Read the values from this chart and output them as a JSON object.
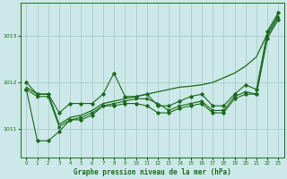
{
  "title": "Graphe pression niveau de la mer (hPa)",
  "xlim": [
    -0.5,
    23.5
  ],
  "ylim": [
    1010.4,
    1013.7
  ],
  "yticks": [
    1011,
    1012,
    1013
  ],
  "xticks": [
    0,
    1,
    2,
    3,
    4,
    5,
    6,
    7,
    8,
    9,
    10,
    11,
    12,
    13,
    14,
    15,
    16,
    17,
    18,
    19,
    20,
    21,
    22,
    23
  ],
  "bg_color": "#cce8e8",
  "grid_color": "#aacccc",
  "line_color": "#1a6b1a",
  "figsize": [
    3.2,
    2.0
  ],
  "dpi": 100,
  "line1": [
    1011.9,
    1011.75,
    1011.75,
    1011.1,
    1011.25,
    1011.3,
    1011.4,
    1011.55,
    1011.6,
    1011.65,
    1011.7,
    1011.75,
    1011.8,
    1011.85,
    1011.9,
    1011.92,
    1011.95,
    1012.0,
    1012.1,
    1012.2,
    1012.35,
    1012.55,
    1013.05,
    1013.45
  ],
  "line2": [
    1012.0,
    1011.75,
    1011.75,
    1011.35,
    1011.55,
    1011.55,
    1011.55,
    1011.75,
    1012.2,
    1011.7,
    1011.7,
    1011.75,
    1011.5,
    1011.5,
    1011.6,
    1011.7,
    1011.75,
    1011.5,
    1011.5,
    1011.75,
    1011.95,
    1011.85,
    1013.1,
    1013.5
  ],
  "line3": [
    1011.85,
    1010.75,
    1010.75,
    1010.95,
    1011.2,
    1011.2,
    1011.3,
    1011.5,
    1011.5,
    1011.55,
    1011.55,
    1011.5,
    1011.35,
    1011.35,
    1011.45,
    1011.5,
    1011.55,
    1011.35,
    1011.35,
    1011.65,
    1011.75,
    1011.75,
    1012.95,
    1013.35
  ],
  "line4": [
    1011.85,
    1011.7,
    1011.7,
    1011.05,
    1011.2,
    1011.25,
    1011.35,
    1011.5,
    1011.55,
    1011.6,
    1011.65,
    1011.65,
    1011.55,
    1011.4,
    1011.5,
    1011.55,
    1011.6,
    1011.4,
    1011.4,
    1011.7,
    1011.8,
    1011.75,
    1013.0,
    1013.4
  ]
}
